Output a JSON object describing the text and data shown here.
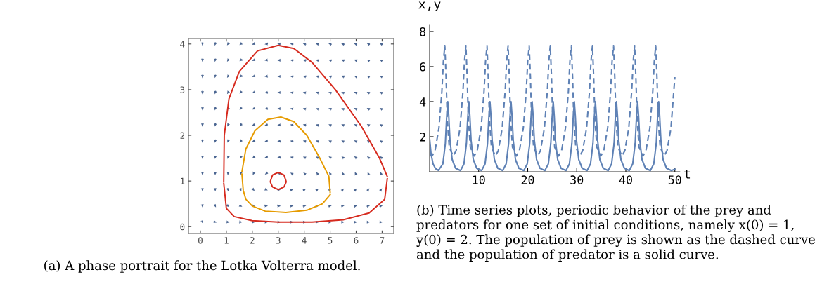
{
  "chart_data": [
    {
      "type": "line",
      "xlim": [
        -0.46,
        7.45
      ],
      "ylim": [
        -0.15,
        4.12
      ],
      "xticks": [
        0,
        1,
        2,
        3,
        4,
        5,
        6,
        7
      ],
      "yticks": [
        0,
        1,
        2,
        3,
        4
      ],
      "annotations": [
        "(a) A phase portrait for the Lotka Volterra model."
      ],
      "series": [
        {
          "color": "#d62a1e",
          "x": [
            0.9,
            0.92,
            1.1,
            1.5,
            2.2,
            3.0,
            3.6,
            4.3,
            5.2,
            6.2,
            6.9,
            7.2
          ],
          "values": [
            1.0,
            2.0,
            2.8,
            3.4,
            3.85,
            3.97,
            3.9,
            3.6,
            3.0,
            2.2,
            1.5,
            1.1
          ]
        },
        {
          "color": "#d62a1e",
          "x": [
            0.9,
            1.0,
            1.3,
            2.0,
            3.0,
            4.3,
            5.5,
            6.5,
            7.1,
            7.2
          ],
          "values": [
            0.95,
            0.4,
            0.22,
            0.13,
            0.1,
            0.1,
            0.15,
            0.3,
            0.6,
            1.05
          ]
        },
        {
          "color": "#e69b00",
          "x": [
            1.6,
            1.75,
            2.1,
            2.6,
            3.1,
            3.6,
            4.1,
            4.6,
            4.95,
            5.0
          ],
          "values": [
            1.2,
            1.7,
            2.1,
            2.35,
            2.4,
            2.3,
            2.0,
            1.5,
            1.1,
            0.75
          ]
        },
        {
          "color": "#e69b00",
          "x": [
            1.6,
            1.65,
            1.75,
            2.0,
            2.5,
            3.3,
            4.1,
            4.7,
            5.0
          ],
          "values": [
            1.15,
            0.8,
            0.6,
            0.45,
            0.34,
            0.31,
            0.36,
            0.5,
            0.7
          ]
        },
        {
          "color": "#d62a1e",
          "x": [
            2.7,
            2.78,
            3.0,
            3.22,
            3.3
          ],
          "values": [
            1.0,
            1.13,
            1.19,
            1.13,
            1.0
          ]
        },
        {
          "color": "#d62a1e",
          "x": [
            2.7,
            2.78,
            3.0,
            3.22,
            3.3
          ],
          "values": [
            0.97,
            0.87,
            0.81,
            0.87,
            0.97
          ]
        }
      ]
    },
    {
      "type": "line",
      "xlim": [
        0,
        51
      ],
      "ylim": [
        0,
        8.4
      ],
      "xticks": [
        10,
        20,
        30,
        40,
        50
      ],
      "yticks": [
        2,
        4,
        6,
        8
      ],
      "xlabel": "t",
      "ylabel": "x,y",
      "grid": false,
      "annotations": [
        "(b) Time series plots, periodic behavior of the prey and predators for one set of initial conditions, namely x(0) = 1, y(0) = 2. The population of prey is shown as the dashed curve and the population of predator is a solid curve."
      ],
      "series": [
        {
          "color": "#5e81b5",
          "line_style": "dashed",
          "x": [
            0,
            0.5,
            1.1,
            1.9,
            2.5,
            2.8,
            3.1,
            3.35,
            3.6,
            4.0,
            4.8,
            5.4,
            6.2,
            6.8,
            7.1,
            7.4,
            7.65,
            7.9,
            8.3,
            9.1,
            9.7,
            10.5,
            11.1,
            11.4,
            11.7,
            11.95,
            12.2,
            12.6,
            13.4,
            14.0,
            14.8,
            15.4,
            15.7,
            16.0,
            16.25,
            16.5,
            16.9,
            17.7,
            18.3,
            19.1,
            19.7,
            20.0,
            20.3,
            20.55,
            20.8,
            21.2,
            22.0,
            22.6,
            23.4,
            24.0,
            24.3,
            24.6,
            24.85,
            25.1,
            25.5,
            26.3,
            26.9,
            27.7,
            28.3,
            28.6,
            28.9,
            29.15,
            29.4,
            29.8,
            30.6,
            31.2,
            32.0,
            32.6,
            32.9,
            33.2,
            33.45,
            33.7,
            34.1,
            34.9,
            35.5,
            36.3,
            36.9,
            37.2,
            37.5,
            37.75,
            38.0,
            38.4,
            39.2,
            39.8,
            40.6,
            41.2,
            41.5,
            41.8,
            42.05,
            42.3,
            42.7,
            43.5,
            44.1,
            44.9,
            45.5,
            45.8,
            46.1,
            46.35,
            46.6,
            47.0,
            47.8,
            48.4,
            49.2,
            50.0
          ],
          "values": [
            1.0,
            0.9,
            1.2,
            2.5,
            4.6,
            6.3,
            7.2,
            5.4,
            3.0,
            1.4,
            0.9,
            1.2,
            2.5,
            4.6,
            6.3,
            7.2,
            5.4,
            3.0,
            1.4,
            0.9,
            1.2,
            2.5,
            4.6,
            6.3,
            7.2,
            5.4,
            3.0,
            1.4,
            0.9,
            1.2,
            2.5,
            4.6,
            6.3,
            7.2,
            5.4,
            3.0,
            1.4,
            0.9,
            1.2,
            2.5,
            4.6,
            6.3,
            7.2,
            5.4,
            3.0,
            1.4,
            0.9,
            1.2,
            2.5,
            4.6,
            6.3,
            7.2,
            5.4,
            3.0,
            1.4,
            0.9,
            1.2,
            2.5,
            4.6,
            6.3,
            7.2,
            5.4,
            3.0,
            1.4,
            0.9,
            1.2,
            2.5,
            4.6,
            6.3,
            7.2,
            5.4,
            3.0,
            1.4,
            0.9,
            1.2,
            2.5,
            4.6,
            6.3,
            7.2,
            5.4,
            3.0,
            1.4,
            0.9,
            1.2,
            2.5,
            4.6,
            6.3,
            7.2,
            5.4,
            3.0,
            1.4,
            0.9,
            1.2,
            2.5,
            4.6,
            6.3,
            7.2,
            5.4,
            3.0,
            1.4,
            0.9,
            1.2,
            2.5,
            5.4
          ]
        },
        {
          "color": "#5e81b5",
          "line_style": "solid",
          "x": [
            0,
            0.3,
            0.7,
            1.2,
            1.8,
            2.7,
            3.2,
            3.45,
            3.7,
            3.9,
            4.15,
            4.6,
            5.3,
            6.3,
            7.0,
            7.5,
            7.75,
            8.0,
            8.2,
            8.45,
            8.9,
            9.6,
            10.6,
            11.3,
            11.8,
            12.05,
            12.3,
            12.5,
            12.75,
            13.2,
            13.9,
            14.9,
            15.6,
            16.1,
            16.35,
            16.6,
            16.8,
            17.05,
            17.5,
            18.2,
            19.2,
            19.9,
            20.4,
            20.65,
            20.9,
            21.1,
            21.35,
            21.8,
            22.5,
            23.5,
            24.2,
            24.7,
            24.95,
            25.2,
            25.4,
            25.65,
            26.1,
            26.8,
            27.8,
            28.5,
            29.0,
            29.25,
            29.5,
            29.7,
            29.95,
            30.4,
            31.1,
            32.1,
            32.8,
            33.3,
            33.55,
            33.8,
            34.0,
            34.25,
            34.7,
            35.4,
            36.4,
            37.1,
            37.6,
            37.85,
            38.1,
            38.3,
            38.55,
            39.0,
            39.7,
            40.7,
            41.4,
            41.9,
            42.15,
            42.4,
            42.6,
            42.85,
            43.3,
            44.0,
            45.0,
            45.7,
            46.2,
            46.45,
            46.7,
            46.9,
            47.15,
            47.6,
            48.3,
            49.3,
            50.0
          ],
          "values": [
            1.9,
            1.0,
            0.45,
            0.18,
            0.08,
            0.45,
            1.6,
            3.0,
            4.0,
            3.2,
            1.8,
            0.7,
            0.2,
            0.07,
            0.45,
            1.6,
            3.0,
            4.0,
            3.2,
            1.8,
            0.7,
            0.2,
            0.07,
            0.45,
            1.6,
            3.0,
            4.0,
            3.2,
            1.8,
            0.7,
            0.2,
            0.07,
            0.45,
            1.6,
            3.0,
            4.0,
            3.2,
            1.8,
            0.7,
            0.2,
            0.07,
            0.45,
            1.6,
            3.0,
            4.0,
            3.2,
            1.8,
            0.7,
            0.2,
            0.07,
            0.45,
            1.6,
            3.0,
            4.0,
            3.2,
            1.8,
            0.7,
            0.2,
            0.07,
            0.45,
            1.6,
            3.0,
            4.0,
            3.2,
            1.8,
            0.7,
            0.2,
            0.07,
            0.45,
            1.6,
            3.0,
            4.0,
            3.2,
            1.8,
            0.7,
            0.2,
            0.07,
            0.45,
            1.6,
            3.0,
            4.0,
            3.2,
            1.8,
            0.7,
            0.2,
            0.07,
            0.45,
            1.6,
            3.0,
            4.0,
            3.2,
            1.8,
            0.7,
            0.2,
            0.07,
            0.45,
            1.6,
            3.0,
            4.0,
            3.2,
            1.8,
            0.7,
            0.2,
            0.07,
            0.15
          ]
        }
      ]
    }
  ]
}
